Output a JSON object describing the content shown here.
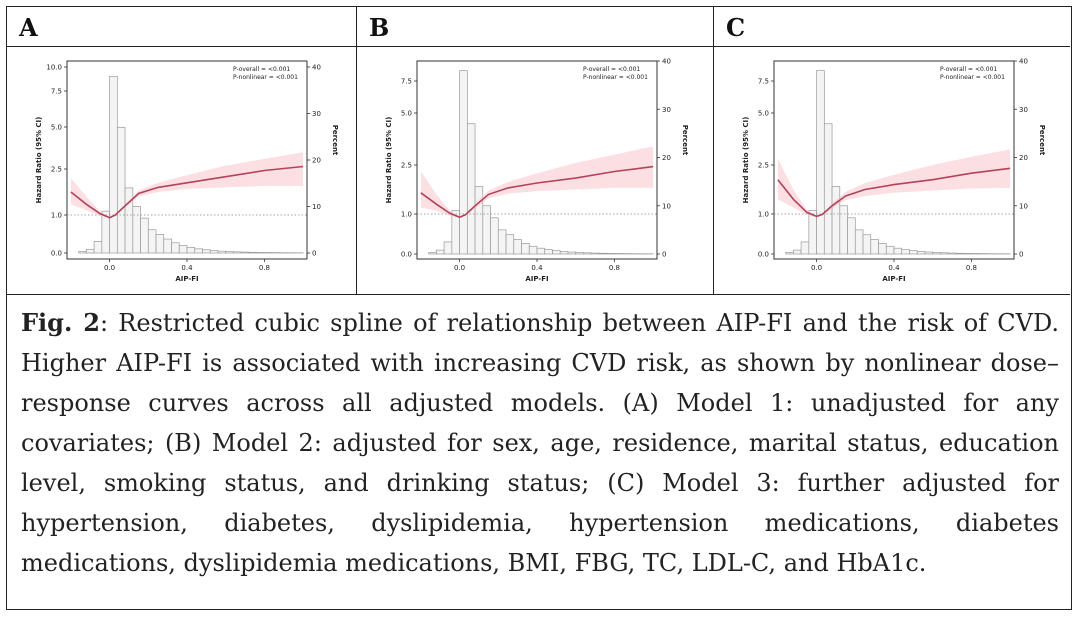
{
  "panels": [
    {
      "label": "A",
      "p_overall": "P-overall = <0.001",
      "p_nonlinear": "P-nonlinear = <0.001",
      "y_ticks": [
        "0.0",
        "1.0",
        "2.5",
        "5.0",
        "7.5",
        "10.0"
      ]
    },
    {
      "label": "B",
      "p_overall": "P-overall = <0.001",
      "p_nonlinear": "P-nonlinear = <0.001",
      "y_ticks": [
        "0.0",
        "1.0",
        "2.5",
        "5.0",
        "7.5"
      ]
    },
    {
      "label": "C",
      "p_overall": "P-overall = <0.001",
      "p_nonlinear": "P-nonlinear = <0.001",
      "y_ticks": [
        "0.0",
        "1.0",
        "2.5",
        "5.0",
        "7.5"
      ]
    }
  ],
  "chart_data": [
    {
      "type": "line",
      "panel": "A",
      "xlabel": "AIP-FI",
      "ylabel": "Hazard Ratio (95% CI)",
      "y2label": "Percent",
      "x_ticks": [
        "0.0",
        "0.4",
        "0.8"
      ],
      "y_ticks": [
        "0.0",
        "1.0",
        "2.5",
        "5.0",
        "7.5",
        "10.0"
      ],
      "y2_ticks": [
        "0",
        "10",
        "20",
        "30",
        "40"
      ],
      "xlim": [
        -0.22,
        1.02
      ],
      "hist_x": [
        -0.14,
        -0.1,
        -0.06,
        -0.02,
        0.02,
        0.06,
        0.1,
        0.14,
        0.18,
        0.22,
        0.26,
        0.3,
        0.34,
        0.38,
        0.42,
        0.46,
        0.5,
        0.54,
        0.58,
        0.62,
        0.66,
        0.7,
        0.74,
        0.78,
        0.82,
        0.86,
        0.9,
        0.94,
        0.98
      ],
      "hist_percent": [
        0.3,
        0.8,
        2.5,
        9,
        38,
        27,
        14,
        10,
        7.5,
        5,
        4,
        3,
        2.2,
        1.6,
        1.2,
        0.9,
        0.7,
        0.5,
        0.4,
        0.3,
        0.25,
        0.2,
        0.15,
        0.12,
        0.1,
        0.08,
        0.06,
        0.05,
        0.04
      ],
      "curve_x": [
        -0.2,
        -0.12,
        -0.05,
        0.0,
        0.03,
        0.08,
        0.15,
        0.25,
        0.4,
        0.6,
        0.8,
        1.0
      ],
      "curve_hr": [
        1.75,
        1.35,
        1.05,
        0.93,
        1.0,
        1.3,
        1.7,
        1.9,
        2.05,
        2.25,
        2.45,
        2.65
      ],
      "ci_lower": [
        1.35,
        1.15,
        0.98,
        0.92,
        0.98,
        1.25,
        1.6,
        1.75,
        1.85,
        1.9,
        1.95,
        1.95
      ],
      "ci_upper": [
        2.2,
        1.6,
        1.12,
        0.94,
        1.02,
        1.35,
        1.8,
        2.05,
        2.3,
        2.7,
        3.1,
        3.5
      ],
      "reference_line": 1.0
    },
    {
      "type": "line",
      "panel": "B",
      "xlabel": "AIP-FI",
      "ylabel": "Hazard Ratio (95% CI)",
      "y2label": "Percent",
      "x_ticks": [
        "0.0",
        "0.4",
        "0.8"
      ],
      "y_ticks": [
        "0.0",
        "1.0",
        "2.5",
        "5.0",
        "7.5"
      ],
      "y2_ticks": [
        "0",
        "10",
        "20",
        "30",
        "40"
      ],
      "xlim": [
        -0.22,
        1.02
      ],
      "hist_x": [
        -0.14,
        -0.1,
        -0.06,
        -0.02,
        0.02,
        0.06,
        0.1,
        0.14,
        0.18,
        0.22,
        0.26,
        0.3,
        0.34,
        0.38,
        0.42,
        0.46,
        0.5,
        0.54,
        0.58,
        0.62,
        0.66,
        0.7,
        0.74,
        0.78,
        0.82,
        0.86,
        0.9,
        0.94,
        0.98
      ],
      "hist_percent": [
        0.3,
        0.8,
        2.5,
        9,
        38,
        27,
        14,
        10,
        7.5,
        5,
        4,
        3,
        2.2,
        1.6,
        1.2,
        0.9,
        0.7,
        0.5,
        0.4,
        0.3,
        0.25,
        0.2,
        0.15,
        0.12,
        0.1,
        0.08,
        0.06,
        0.05,
        0.04
      ],
      "curve_x": [
        -0.2,
        -0.12,
        -0.05,
        0.0,
        0.03,
        0.08,
        0.15,
        0.25,
        0.4,
        0.6,
        0.8,
        1.0
      ],
      "curve_hr": [
        1.65,
        1.3,
        1.02,
        0.92,
        0.98,
        1.25,
        1.6,
        1.8,
        1.95,
        2.1,
        2.3,
        2.45
      ],
      "ci_lower": [
        1.2,
        1.1,
        0.96,
        0.91,
        0.96,
        1.18,
        1.48,
        1.62,
        1.7,
        1.75,
        1.8,
        1.8
      ],
      "ci_upper": [
        2.3,
        1.6,
        1.1,
        0.94,
        1.01,
        1.32,
        1.72,
        1.98,
        2.25,
        2.6,
        3.0,
        3.4
      ],
      "reference_line": 1.0
    },
    {
      "type": "line",
      "panel": "C",
      "xlabel": "AIP-FI",
      "ylabel": "Hazard Ratio (95% CI)",
      "y2label": "Percent",
      "x_ticks": [
        "0.0",
        "0.4",
        "0.8"
      ],
      "y_ticks": [
        "0.0",
        "1.0",
        "2.5",
        "5.0",
        "7.5"
      ],
      "y2_ticks": [
        "0",
        "10",
        "20",
        "30",
        "40"
      ],
      "xlim": [
        -0.22,
        1.02
      ],
      "hist_x": [
        -0.14,
        -0.1,
        -0.06,
        -0.02,
        0.02,
        0.06,
        0.1,
        0.14,
        0.18,
        0.22,
        0.26,
        0.3,
        0.34,
        0.38,
        0.42,
        0.46,
        0.5,
        0.54,
        0.58,
        0.62,
        0.66,
        0.7,
        0.74,
        0.78,
        0.82,
        0.86,
        0.9,
        0.94,
        0.98
      ],
      "hist_percent": [
        0.3,
        0.8,
        2.5,
        9,
        38,
        27,
        14,
        10,
        7.5,
        5,
        4,
        3,
        2.2,
        1.6,
        1.2,
        0.9,
        0.7,
        0.5,
        0.4,
        0.3,
        0.25,
        0.2,
        0.15,
        0.12,
        0.1,
        0.08,
        0.06,
        0.05,
        0.04
      ],
      "curve_x": [
        -0.2,
        -0.12,
        -0.05,
        0.0,
        0.03,
        0.08,
        0.15,
        0.25,
        0.4,
        0.6,
        0.8,
        1.0
      ],
      "curve_hr": [
        2.05,
        1.45,
        1.05,
        0.94,
        0.99,
        1.25,
        1.55,
        1.75,
        1.9,
        2.05,
        2.25,
        2.4
      ],
      "ci_lower": [
        1.45,
        1.2,
        0.98,
        0.93,
        0.97,
        1.18,
        1.42,
        1.55,
        1.65,
        1.72,
        1.78,
        1.8
      ],
      "ci_upper": [
        2.8,
        1.75,
        1.12,
        0.95,
        1.01,
        1.32,
        1.68,
        1.95,
        2.2,
        2.5,
        2.9,
        3.25
      ],
      "reference_line": 1.0
    }
  ],
  "caption": {
    "fig_label": "Fig. 2",
    "text": ": Restricted cubic spline of relationship between AIP-FI and the risk of CVD. Higher AIP-FI is associated with increasing CVD risk, as shown by nonlinear dose–response curves across all adjusted models. (A) Model 1: unadjusted for any covariates; (B) Model 2: adjusted for sex, age, residence, marital status, education level, smoking status, and drinking status; (C) Model 3: further adjusted for hypertension, diabetes, dyslipidemia, hypertension medications, diabetes medications, dyslipidemia medications, BMI, FBG, TC, LDL-C, and HbA1c."
  }
}
